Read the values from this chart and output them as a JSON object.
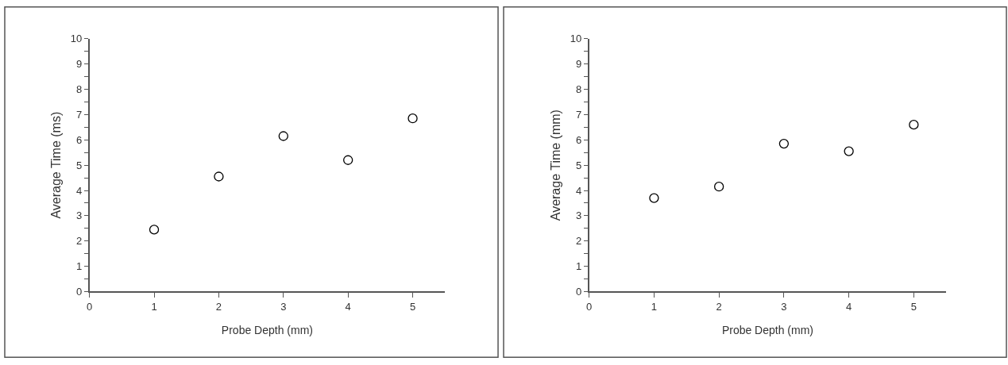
{
  "chart_data": [
    {
      "type": "scatter",
      "xlabel": "Probe Depth (mm)",
      "ylabel": "Average Time (ms)",
      "x": [
        1,
        2,
        3,
        4,
        5
      ],
      "series": [
        {
          "color": "#000000",
          "values": [
            2.45,
            4.55,
            6.15,
            5.2,
            6.85
          ]
        }
      ],
      "xlim": [
        0,
        5.5
      ],
      "xticks": [
        0,
        1,
        2,
        3,
        4,
        5
      ],
      "ylim": [
        0,
        10
      ],
      "yticks": [
        0,
        {
          "value": 0.5,
          "label": null
        },
        1,
        {
          "value": 1.5,
          "label": null
        },
        2,
        {
          "value": 2.5,
          "label": null
        },
        3,
        {
          "value": 3.5,
          "label": null
        },
        4,
        {
          "value": 4.5,
          "label": null
        },
        5,
        {
          "value": 5.5,
          "label": null
        },
        6,
        {
          "value": 6.5,
          "label": null
        },
        7,
        {
          "value": 7.5,
          "label": null
        },
        8,
        {
          "value": 8.5,
          "label": null
        },
        9,
        {
          "value": 9.5,
          "label": null
        },
        10
      ],
      "marker": "circle"
    },
    {
      "type": "scatter",
      "xlabel": "Probe Depth (mm)",
      "ylabel": "Average Time (mm)",
      "x": [
        1,
        2,
        3,
        4,
        5
      ],
      "series": [
        {
          "color": "#000000",
          "values": [
            3.7,
            4.15,
            5.85,
            5.55,
            6.6
          ]
        }
      ],
      "xlim": [
        0,
        5.5
      ],
      "xticks": [
        0,
        1,
        2,
        3,
        4,
        5
      ],
      "ylim": [
        0,
        10
      ],
      "yticks": [
        0,
        {
          "value": 0.5,
          "label": null
        },
        1,
        {
          "value": 1.5,
          "label": null
        },
        2,
        {
          "value": 2.5,
          "label": null
        },
        3,
        {
          "value": 3.5,
          "label": null
        },
        4,
        {
          "value": 4.5,
          "label": null
        },
        5,
        {
          "value": 5.5,
          "label": null
        },
        6,
        {
          "value": 6.5,
          "label": null
        },
        7,
        {
          "value": 7.5,
          "label": null
        },
        8,
        {
          "value": 8.5,
          "label": null
        },
        9,
        {
          "value": 9.5,
          "label": null
        },
        10
      ],
      "marker": "circle"
    }
  ]
}
